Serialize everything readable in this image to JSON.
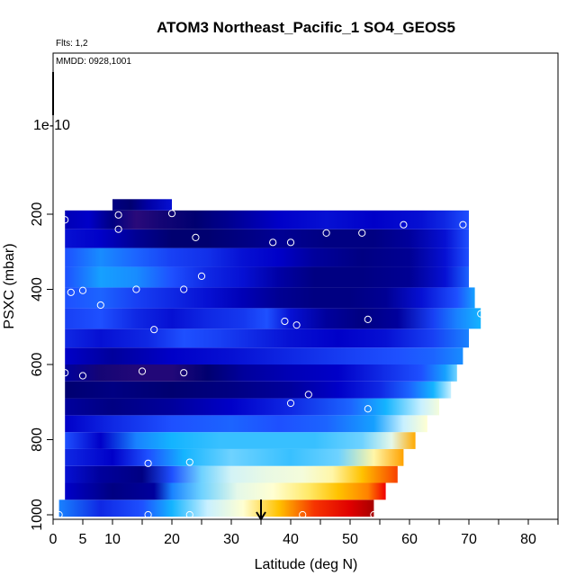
{
  "chart_data": {
    "type": "heatmap",
    "title": "ATOM3 Northeast_Pacific_1 SO4_GEOS5",
    "notes": {
      "flights": "Flts: 1,2",
      "dates": "MMDD: 0928,1001"
    },
    "xlabel": "Latitude (deg N)",
    "ylabel": "PSXC (mbar)",
    "xlim": [
      0,
      85
    ],
    "x_ticks": [
      0,
      5,
      10,
      20,
      30,
      40,
      50,
      60,
      70,
      80
    ],
    "x_minor_ticks": [
      15,
      25,
      35,
      45,
      55,
      65,
      75,
      85
    ],
    "y_ticks": [
      {
        "value": 1000,
        "label": "1000"
      },
      {
        "value": 800,
        "label": "800"
      },
      {
        "value": 600,
        "label": "600"
      },
      {
        "value": 400,
        "label": "400"
      },
      {
        "value": 200,
        "label": "200"
      }
    ],
    "y_outlier_label": "1e-10",
    "y_outlier_line": true,
    "arrow_latitude": 35,
    "colormap": [
      "#2a0a7a",
      "#000070",
      "#0000c8",
      "#1e50ff",
      "#14b4ff",
      "#c8f0ff",
      "#ffffd2",
      "#ffd200",
      "#ff8200",
      "#f00000",
      "#a00000"
    ],
    "rows": [
      {
        "p_top": 960,
        "p_bot": 1005,
        "lat_start": 1,
        "lat_end": 54,
        "stops": [
          [
            1,
            0.35
          ],
          [
            8,
            0.25
          ],
          [
            15,
            0.3
          ],
          [
            20,
            0.4
          ],
          [
            26,
            0.5
          ],
          [
            32,
            0.6
          ],
          [
            38,
            0.72
          ],
          [
            44,
            0.86
          ],
          [
            50,
            0.92
          ],
          [
            54,
            0.99
          ]
        ]
      },
      {
        "p_top": 915,
        "p_bot": 960,
        "lat_start": 2,
        "lat_end": 56,
        "stops": [
          [
            2,
            0.2
          ],
          [
            10,
            0.12
          ],
          [
            17,
            0.15
          ],
          [
            20,
            0.35
          ],
          [
            25,
            0.45
          ],
          [
            31,
            0.55
          ],
          [
            37,
            0.6
          ],
          [
            43,
            0.65
          ],
          [
            48,
            0.72
          ],
          [
            53,
            0.8
          ],
          [
            56,
            0.9
          ]
        ]
      },
      {
        "p_top": 870,
        "p_bot": 915,
        "lat_start": 2,
        "lat_end": 58,
        "stops": [
          [
            2,
            0.22
          ],
          [
            8,
            0.15
          ],
          [
            15,
            0.12
          ],
          [
            20,
            0.3
          ],
          [
            25,
            0.45
          ],
          [
            30,
            0.52
          ],
          [
            36,
            0.56
          ],
          [
            42,
            0.58
          ],
          [
            47,
            0.62
          ],
          [
            52,
            0.72
          ],
          [
            58,
            0.85
          ]
        ]
      },
      {
        "p_top": 825,
        "p_bot": 870,
        "lat_start": 2,
        "lat_end": 59,
        "stops": [
          [
            2,
            0.25
          ],
          [
            10,
            0.2
          ],
          [
            16,
            0.3
          ],
          [
            22,
            0.4
          ],
          [
            30,
            0.45
          ],
          [
            40,
            0.42
          ],
          [
            48,
            0.45
          ],
          [
            54,
            0.62
          ],
          [
            59,
            0.76
          ]
        ]
      },
      {
        "p_top": 780,
        "p_bot": 825,
        "lat_start": 2,
        "lat_end": 61,
        "stops": [
          [
            2,
            0.3
          ],
          [
            8,
            0.2
          ],
          [
            14,
            0.35
          ],
          [
            20,
            0.4
          ],
          [
            28,
            0.42
          ],
          [
            36,
            0.42
          ],
          [
            44,
            0.42
          ],
          [
            52,
            0.45
          ],
          [
            57,
            0.55
          ],
          [
            61,
            0.75
          ]
        ]
      },
      {
        "p_top": 735,
        "p_bot": 780,
        "lat_start": 2,
        "lat_end": 63,
        "stops": [
          [
            2,
            0.2
          ],
          [
            10,
            0.25
          ],
          [
            20,
            0.3
          ],
          [
            30,
            0.32
          ],
          [
            38,
            0.3
          ],
          [
            46,
            0.32
          ],
          [
            54,
            0.38
          ],
          [
            59,
            0.5
          ],
          [
            63,
            0.6
          ]
        ]
      },
      {
        "p_top": 690,
        "p_bot": 735,
        "lat_start": 2,
        "lat_end": 65,
        "stops": [
          [
            2,
            0.15
          ],
          [
            10,
            0.12
          ],
          [
            20,
            0.15
          ],
          [
            30,
            0.2
          ],
          [
            40,
            0.25
          ],
          [
            50,
            0.32
          ],
          [
            56,
            0.4
          ],
          [
            62,
            0.5
          ],
          [
            65,
            0.58
          ]
        ]
      },
      {
        "p_top": 645,
        "p_bot": 690,
        "lat_start": 2,
        "lat_end": 67,
        "stops": [
          [
            2,
            0.1
          ],
          [
            10,
            0.12
          ],
          [
            20,
            0.1
          ],
          [
            30,
            0.12
          ],
          [
            40,
            0.15
          ],
          [
            48,
            0.2
          ],
          [
            55,
            0.25
          ],
          [
            60,
            0.32
          ],
          [
            64,
            0.4
          ],
          [
            67,
            0.5
          ]
        ]
      },
      {
        "p_top": 600,
        "p_bot": 645,
        "lat_start": 2,
        "lat_end": 68,
        "stops": [
          [
            2,
            0.15
          ],
          [
            8,
            0.05
          ],
          [
            14,
            0.02
          ],
          [
            20,
            0.02
          ],
          [
            26,
            0.1
          ],
          [
            32,
            0.15
          ],
          [
            40,
            0.18
          ],
          [
            48,
            0.2
          ],
          [
            55,
            0.25
          ],
          [
            62,
            0.3
          ],
          [
            66,
            0.38
          ],
          [
            68,
            0.45
          ]
        ]
      },
      {
        "p_top": 555,
        "p_bot": 600,
        "lat_start": 2,
        "lat_end": 69,
        "stops": [
          [
            2,
            0.2
          ],
          [
            10,
            0.15
          ],
          [
            20,
            0.2
          ],
          [
            30,
            0.22
          ],
          [
            40,
            0.25
          ],
          [
            50,
            0.28
          ],
          [
            58,
            0.3
          ],
          [
            64,
            0.32
          ],
          [
            69,
            0.36
          ]
        ]
      },
      {
        "p_top": 505,
        "p_bot": 555,
        "lat_start": 2,
        "lat_end": 70,
        "stops": [
          [
            2,
            0.25
          ],
          [
            8,
            0.22
          ],
          [
            16,
            0.25
          ],
          [
            22,
            0.3
          ],
          [
            28,
            0.28
          ],
          [
            34,
            0.25
          ],
          [
            40,
            0.22
          ],
          [
            48,
            0.2
          ],
          [
            56,
            0.22
          ],
          [
            64,
            0.28
          ],
          [
            70,
            0.35
          ]
        ]
      },
      {
        "p_top": 450,
        "p_bot": 505,
        "lat_start": 2,
        "lat_end": 72,
        "stops": [
          [
            2,
            0.28
          ],
          [
            8,
            0.3
          ],
          [
            14,
            0.25
          ],
          [
            20,
            0.22
          ],
          [
            26,
            0.25
          ],
          [
            32,
            0.27
          ],
          [
            36,
            0.3
          ],
          [
            40,
            0.22
          ],
          [
            46,
            0.15
          ],
          [
            52,
            0.12
          ],
          [
            58,
            0.15
          ],
          [
            64,
            0.28
          ],
          [
            68,
            0.35
          ],
          [
            72,
            0.4
          ]
        ]
      },
      {
        "p_top": 395,
        "p_bot": 450,
        "lat_start": 2,
        "lat_end": 71,
        "stops": [
          [
            2,
            0.3
          ],
          [
            8,
            0.32
          ],
          [
            14,
            0.28
          ],
          [
            20,
            0.25
          ],
          [
            26,
            0.22
          ],
          [
            32,
            0.18
          ],
          [
            38,
            0.14
          ],
          [
            44,
            0.12
          ],
          [
            50,
            0.12
          ],
          [
            56,
            0.14
          ],
          [
            62,
            0.22
          ],
          [
            68,
            0.3
          ],
          [
            71,
            0.38
          ]
        ]
      },
      {
        "p_top": 340,
        "p_bot": 395,
        "lat_start": 2,
        "lat_end": 70,
        "stops": [
          [
            2,
            0.3
          ],
          [
            8,
            0.38
          ],
          [
            14,
            0.36
          ],
          [
            20,
            0.3
          ],
          [
            26,
            0.25
          ],
          [
            32,
            0.22
          ],
          [
            38,
            0.16
          ],
          [
            44,
            0.12
          ],
          [
            52,
            0.12
          ],
          [
            60,
            0.14
          ],
          [
            66,
            0.22
          ],
          [
            70,
            0.32
          ]
        ]
      },
      {
        "p_top": 290,
        "p_bot": 340,
        "lat_start": 2,
        "lat_end": 70,
        "stops": [
          [
            2,
            0.3
          ],
          [
            8,
            0.36
          ],
          [
            14,
            0.32
          ],
          [
            20,
            0.28
          ],
          [
            26,
            0.26
          ],
          [
            32,
            0.22
          ],
          [
            38,
            0.2
          ],
          [
            44,
            0.15
          ],
          [
            52,
            0.12
          ],
          [
            60,
            0.14
          ],
          [
            66,
            0.22
          ],
          [
            70,
            0.3
          ]
        ]
      },
      {
        "p_top": 240,
        "p_bot": 290,
        "lat_start": 2,
        "lat_end": 70,
        "stops": [
          [
            2,
            0.22
          ],
          [
            8,
            0.2
          ],
          [
            14,
            0.14
          ],
          [
            20,
            0.1
          ],
          [
            26,
            0.1
          ],
          [
            32,
            0.12
          ],
          [
            38,
            0.14
          ],
          [
            46,
            0.12
          ],
          [
            54,
            0.12
          ],
          [
            60,
            0.15
          ],
          [
            66,
            0.22
          ],
          [
            70,
            0.3
          ]
        ]
      },
      {
        "p_top": 190,
        "p_bot": 240,
        "lat_start": 2,
        "lat_end": 70,
        "stops": [
          [
            2,
            0.18
          ],
          [
            6,
            0.2
          ],
          [
            10,
            0.12
          ],
          [
            14,
            0.0
          ],
          [
            18,
            0.05
          ],
          [
            24,
            0.1
          ],
          [
            30,
            0.14
          ],
          [
            38,
            0.2
          ],
          [
            46,
            0.22
          ],
          [
            54,
            0.2
          ],
          [
            62,
            0.22
          ],
          [
            66,
            0.25
          ],
          [
            70,
            0.3
          ]
        ]
      },
      {
        "p_top": 160,
        "p_bot": 190,
        "lat_start": 10,
        "lat_end": 20,
        "stops": [
          [
            10,
            0.12
          ],
          [
            13,
            0.1
          ],
          [
            16,
            0.16
          ],
          [
            20,
            0.22
          ]
        ]
      }
    ],
    "points": [
      [
        1,
        1000
      ],
      [
        16,
        1000
      ],
      [
        23,
        1000
      ],
      [
        42,
        1000
      ],
      [
        54,
        1000
      ],
      [
        16,
        863
      ],
      [
        23,
        860
      ],
      [
        40,
        703
      ],
      [
        43,
        680
      ],
      [
        53,
        718
      ],
      [
        2,
        622
      ],
      [
        5,
        630
      ],
      [
        15,
        618
      ],
      [
        22,
        622
      ],
      [
        17,
        507
      ],
      [
        39,
        485
      ],
      [
        41,
        495
      ],
      [
        53,
        480
      ],
      [
        72,
        465
      ],
      [
        3,
        408
      ],
      [
        5,
        403
      ],
      [
        8,
        442
      ],
      [
        14,
        400
      ],
      [
        22,
        400
      ],
      [
        25,
        365
      ],
      [
        24,
        262
      ],
      [
        37,
        275
      ],
      [
        40,
        275
      ],
      [
        46,
        250
      ],
      [
        52,
        250
      ],
      [
        2,
        215
      ],
      [
        11,
        240
      ],
      [
        59,
        228
      ],
      [
        69,
        228
      ],
      [
        11,
        202
      ],
      [
        20,
        198
      ]
    ]
  }
}
